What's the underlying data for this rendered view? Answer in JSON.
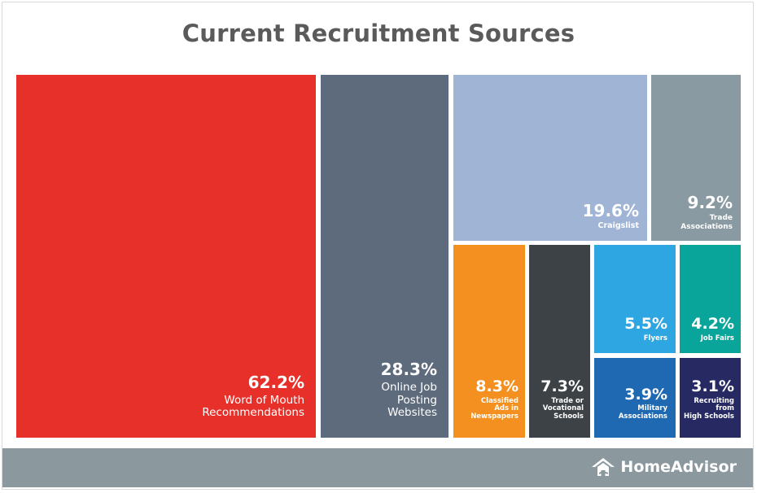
{
  "chart_data": {
    "type": "treemap",
    "title": "Current Recruitment Sources",
    "items": [
      {
        "value": 62.2,
        "pct": "62.2%",
        "label": [
          "Word of Mouth",
          "Recommendations"
        ],
        "color": "#e8302a"
      },
      {
        "value": 28.3,
        "pct": "28.3%",
        "label": [
          "Online Job",
          "Posting",
          "Websites"
        ],
        "color": "#5e6b7c"
      },
      {
        "value": 19.6,
        "pct": "19.6%",
        "label": [
          "Craigslist"
        ],
        "color": "#a0b4d6"
      },
      {
        "value": 9.2,
        "pct": "9.2%",
        "label": [
          "Trade",
          "Associations"
        ],
        "color": "#8a9aa2"
      },
      {
        "value": 8.3,
        "pct": "8.3%",
        "label": [
          "Classified",
          "Ads in",
          "Newspapers"
        ],
        "color": "#f39020"
      },
      {
        "value": 7.3,
        "pct": "7.3%",
        "label": [
          "Trade or",
          "Vocational",
          "Schools"
        ],
        "color": "#3c4246"
      },
      {
        "value": 5.5,
        "pct": "5.5%",
        "label": [
          "Flyers"
        ],
        "color": "#2ea6e2"
      },
      {
        "value": 4.2,
        "pct": "4.2%",
        "label": [
          "Job Fairs"
        ],
        "color": "#0aa59a"
      },
      {
        "value": 3.9,
        "pct": "3.9%",
        "label": [
          "Military",
          "Associations"
        ],
        "color": "#1f68b2"
      },
      {
        "value": 3.1,
        "pct": "3.1%",
        "label": [
          "Recruiting",
          "from",
          "High Schools"
        ],
        "color": "#262962"
      }
    ]
  },
  "footer": {
    "brand": "HomeAdvisor",
    "logo_icon": "house-logo-icon",
    "color": "#8b999f"
  }
}
